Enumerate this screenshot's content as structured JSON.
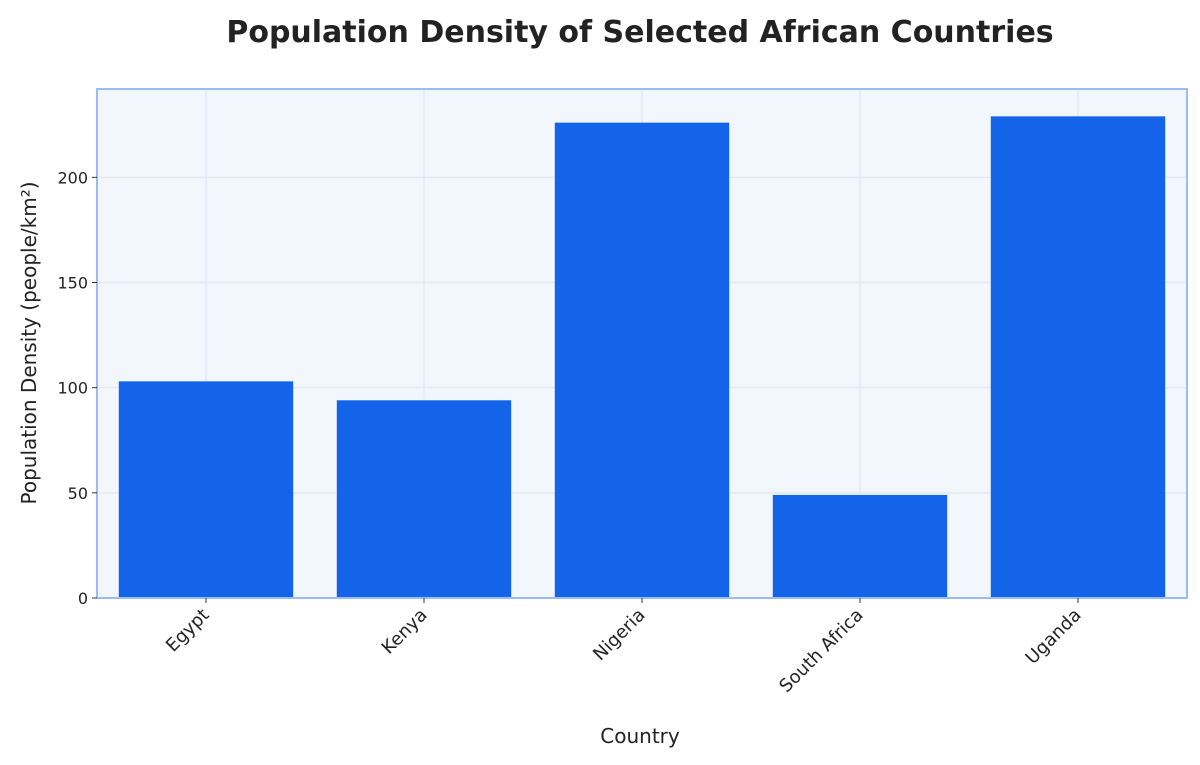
{
  "chart_data": {
    "type": "bar",
    "title": "Population Density of Selected African Countries",
    "xlabel": "Country",
    "ylabel": "Population Density (people/km²)",
    "categories": [
      "Egypt",
      "Kenya",
      "Nigeria",
      "South Africa",
      "Uganda"
    ],
    "values": [
      103,
      94,
      226,
      49,
      229
    ],
    "ylim": [
      0,
      242
    ],
    "yticks": [
      0,
      50,
      100,
      150,
      200
    ],
    "grid": true,
    "colors": {
      "bar": "#1464ea",
      "plot_background": "#f2f6fd",
      "plot_border": "#9bbcf2",
      "grid": "#e2e9f6"
    }
  }
}
